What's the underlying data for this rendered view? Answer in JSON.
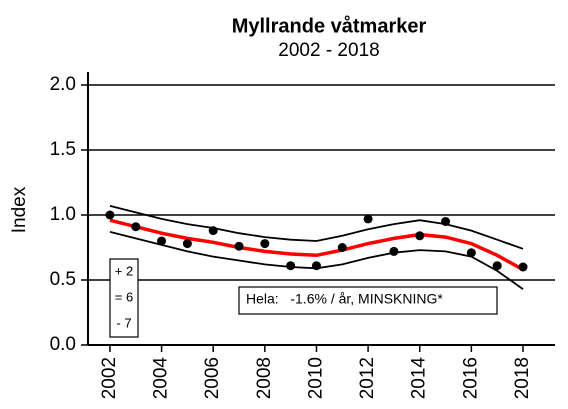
{
  "chart_data": {
    "type": "line",
    "title": "Myllrande våtmarker",
    "subtitle": "2002 - 2018",
    "y_label": "Index",
    "x": [
      2002,
      2003,
      2004,
      2005,
      2006,
      2007,
      2008,
      2009,
      2010,
      2011,
      2012,
      2013,
      2014,
      2015,
      2016,
      2017,
      2018
    ],
    "series": [
      {
        "mode": "markers",
        "color": "#000000",
        "values": [
          1.0,
          0.91,
          0.8,
          0.78,
          0.88,
          0.76,
          0.78,
          0.61,
          0.61,
          0.75,
          0.97,
          0.72,
          0.84,
          0.95,
          0.71,
          0.61,
          0.6
        ]
      },
      {
        "mode": "line",
        "color": "#000000",
        "values": [
          1.07,
          1.02,
          0.97,
          0.93,
          0.9,
          0.86,
          0.83,
          0.81,
          0.8,
          0.84,
          0.89,
          0.93,
          0.96,
          0.93,
          0.88,
          0.81,
          0.74
        ]
      },
      {
        "mode": "line",
        "color": "#000000",
        "values": [
          0.87,
          0.82,
          0.77,
          0.72,
          0.68,
          0.65,
          0.62,
          0.6,
          0.59,
          0.62,
          0.67,
          0.71,
          0.73,
          0.72,
          0.68,
          0.57,
          0.43
        ]
      },
      {
        "mode": "line",
        "color": "#ff0000",
        "values": [
          0.96,
          0.91,
          0.86,
          0.82,
          0.79,
          0.75,
          0.72,
          0.7,
          0.69,
          0.73,
          0.78,
          0.82,
          0.85,
          0.83,
          0.78,
          0.69,
          0.58
        ]
      }
    ],
    "xlim": [
      2001.15,
      2019.24
    ],
    "xticks": [
      2002,
      2004,
      2006,
      2008,
      2010,
      2012,
      2014,
      2016,
      2018
    ],
    "ylim": [
      0,
      2.1
    ],
    "yticks": [
      {
        "value": 0,
        "label": "0.0"
      },
      0.5,
      {
        "value": 1,
        "label": "1.0"
      },
      1.5,
      {
        "value": 2,
        "label": "2.0"
      }
    ],
    "grid": true,
    "counts": [
      "+ 2",
      "= 6",
      "- 7"
    ],
    "annotation": "Hela:   -1.6% / år, MINSKNING*"
  }
}
